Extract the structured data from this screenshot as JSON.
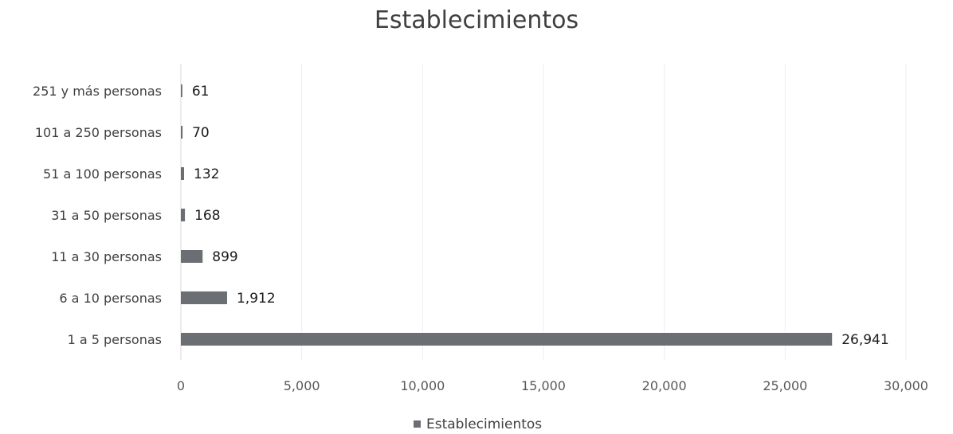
{
  "chart_data": {
    "type": "bar",
    "orientation": "horizontal",
    "title": "Establecimientos",
    "categories": [
      "1 a 5 personas",
      "6 a 10 personas",
      "11 a 30 personas",
      "31 a 50 personas",
      "51 a 100 personas",
      "101 a 250 personas",
      "251 y más personas"
    ],
    "series": [
      {
        "name": "Establecimientos",
        "values": [
          26941,
          1912,
          899,
          168,
          132,
          70,
          61
        ]
      }
    ],
    "data_labels": [
      "26,941",
      "1,912",
      "899",
      "168",
      "132",
      "70",
      "61"
    ],
    "xlim": [
      0,
      30000
    ],
    "x_ticks": [
      0,
      5000,
      10000,
      15000,
      20000,
      25000,
      30000
    ],
    "x_tick_labels": [
      "0",
      "5,000",
      "10,000",
      "15,000",
      "20,000",
      "25,000",
      "30,000"
    ],
    "grid": true,
    "legend": "bottom",
    "bar_color": "#6b6e72"
  }
}
